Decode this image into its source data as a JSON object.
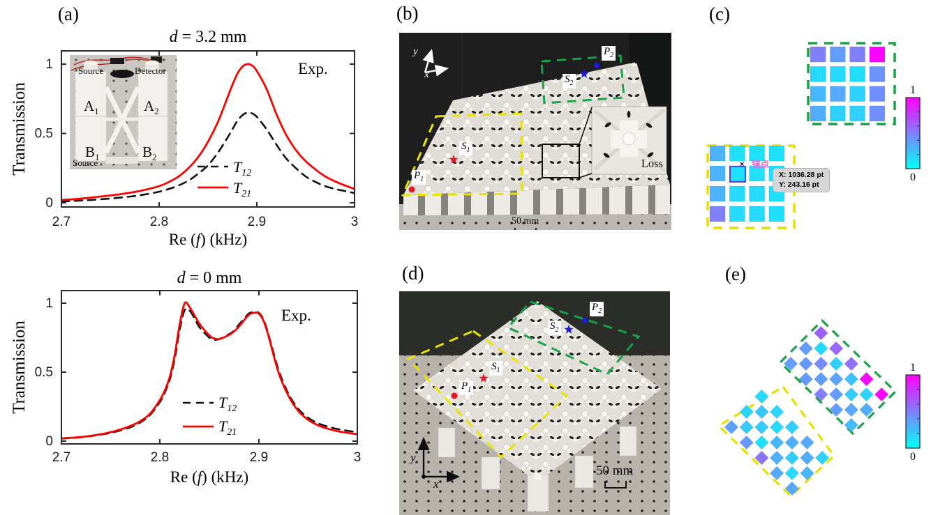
{
  "figure": {
    "panel_labels": {
      "a": "(a)",
      "b": "(b)",
      "c": "(c)",
      "d": "(d)",
      "e": "(e)"
    }
  },
  "plots": {
    "top": {
      "title_var": "d",
      "title_rest": " = 3.2 mm",
      "corner": "Exp.",
      "ylabel": "Transmission",
      "xlabel_pre": "Re (",
      "xlabel_var": "f",
      "xlabel_post": ") (kHz)"
    },
    "bottom": {
      "title_var": "d",
      "title_rest": " = 0 mm",
      "corner": "Exp.",
      "ylabel": "Transmission",
      "xlabel_pre": "Re (",
      "xlabel_var": "f",
      "xlabel_post": ") (kHz)"
    }
  },
  "inset_a": {
    "source_top": "Source",
    "detector": "Detector",
    "source_bottom": "Source",
    "a1_main": "A",
    "a1_sub": "1",
    "a2_main": "A",
    "a2_sub": "2",
    "b1_main": "B",
    "b1_sub": "1",
    "b2_main": "B",
    "b2_sub": "2"
  },
  "photo_b": {
    "axis_x": "x",
    "axis_y": "y",
    "loss": "Loss",
    "scale": "50 mm",
    "p1_main": "P",
    "p1_sub": "1",
    "p2_main": "P",
    "p2_sub": "2",
    "s1_main": "S",
    "s1_sub": "1",
    "s2_main": "S",
    "s2_sub": "2"
  },
  "photo_d": {
    "axis_x": "x",
    "axis_y": "y",
    "scale": "50 mm",
    "p1_main": "P",
    "p1_sub": "1",
    "p2_main": "P",
    "p2_sub": "2",
    "s1_main": "S",
    "s1_sub": "1",
    "s2_main": "S",
    "s2_sub": "2"
  },
  "annotation_overlay": {
    "anchor_label": "锚点",
    "cursor_mark": "×",
    "tooltip_line1": "X: 1036.28 pt",
    "tooltip_line2": "Y: 243.16 pt"
  },
  "chart_data": [
    {
      "id": "transmission-vs-frequency-d3p2mm",
      "type": "line",
      "title": "d = 3.2 mm",
      "xlabel": "Re (f) (kHz)",
      "ylabel": "Transmission",
      "annotation": "Exp.",
      "xlim": [
        2.7,
        3.0
      ],
      "ylim": [
        0,
        1.1
      ],
      "xticks": [
        2.7,
        2.8,
        2.9,
        3.0
      ],
      "xtick_labels": [
        "2.7",
        "2.8",
        "2.9",
        "3"
      ],
      "yticks": [
        0,
        0.5,
        1
      ],
      "ytick_labels": [
        "0",
        "0.5",
        "1"
      ],
      "grid": false,
      "legend_position": "lower right inside",
      "series": [
        {
          "name": "T12",
          "label_main": "T",
          "label_sub": "12",
          "style": "dashed",
          "color": "#111111",
          "x": [
            2.7,
            2.72,
            2.74,
            2.76,
            2.78,
            2.8,
            2.81,
            2.82,
            2.83,
            2.84,
            2.85,
            2.86,
            2.87,
            2.875,
            2.88,
            2.885,
            2.89,
            2.895,
            2.9,
            2.91,
            2.92,
            2.93,
            2.94,
            2.95,
            2.96,
            2.97,
            2.98,
            2.99,
            3.0
          ],
          "y": [
            0.01,
            0.016,
            0.025,
            0.037,
            0.054,
            0.08,
            0.1,
            0.125,
            0.16,
            0.21,
            0.27,
            0.36,
            0.47,
            0.53,
            0.59,
            0.63,
            0.65,
            0.645,
            0.62,
            0.53,
            0.42,
            0.32,
            0.25,
            0.19,
            0.15,
            0.12,
            0.1,
            0.085,
            0.07
          ]
        },
        {
          "name": "T21",
          "label_main": "T",
          "label_sub": "21",
          "style": "solid",
          "color": "#fe0000",
          "x": [
            2.7,
            2.72,
            2.74,
            2.76,
            2.78,
            2.8,
            2.81,
            2.82,
            2.83,
            2.84,
            2.85,
            2.86,
            2.87,
            2.875,
            2.88,
            2.885,
            2.89,
            2.895,
            2.9,
            2.91,
            2.92,
            2.93,
            2.94,
            2.95,
            2.96,
            2.97,
            2.98,
            2.99,
            3.0
          ],
          "y": [
            0.02,
            0.03,
            0.045,
            0.062,
            0.085,
            0.12,
            0.15,
            0.19,
            0.25,
            0.33,
            0.44,
            0.58,
            0.76,
            0.85,
            0.93,
            0.98,
            1.0,
            0.99,
            0.95,
            0.82,
            0.64,
            0.49,
            0.38,
            0.3,
            0.24,
            0.19,
            0.155,
            0.125,
            0.1
          ]
        }
      ]
    },
    {
      "id": "transmission-vs-frequency-d0mm",
      "type": "line",
      "title": "d = 0 mm",
      "xlabel": "Re (f) (kHz)",
      "ylabel": "Transmission",
      "annotation": "Exp.",
      "xlim": [
        2.7,
        3.0
      ],
      "ylim": [
        0,
        1.1
      ],
      "xticks": [
        2.7,
        2.8,
        2.9,
        3.0
      ],
      "xtick_labels": [
        "2.7",
        "2.8",
        "2.9",
        "3"
      ],
      "yticks": [
        0,
        0.5,
        1
      ],
      "ytick_labels": [
        "0",
        "0.5",
        "1"
      ],
      "grid": false,
      "legend_position": "lower center inside",
      "series": [
        {
          "name": "T12",
          "label_main": "T",
          "label_sub": "12",
          "style": "dashed",
          "color": "#111111",
          "x": [
            2.7,
            2.72,
            2.74,
            2.75,
            2.76,
            2.77,
            2.78,
            2.79,
            2.8,
            2.805,
            2.81,
            2.815,
            2.82,
            2.825,
            2.83,
            2.835,
            2.84,
            2.85,
            2.855,
            2.86,
            2.87,
            2.875,
            2.88,
            2.885,
            2.89,
            2.895,
            2.9,
            2.905,
            2.91,
            2.92,
            2.93,
            2.94,
            2.95,
            2.96,
            2.97,
            2.98,
            2.99,
            3.0
          ],
          "y": [
            0.018,
            0.028,
            0.047,
            0.06,
            0.078,
            0.1,
            0.135,
            0.19,
            0.285,
            0.355,
            0.45,
            0.6,
            0.81,
            0.95,
            0.945,
            0.89,
            0.825,
            0.75,
            0.735,
            0.74,
            0.775,
            0.8,
            0.845,
            0.885,
            0.925,
            0.935,
            0.93,
            0.88,
            0.77,
            0.52,
            0.345,
            0.235,
            0.17,
            0.13,
            0.105,
            0.088,
            0.075,
            0.065
          ]
        },
        {
          "name": "T21",
          "label_main": "T",
          "label_sub": "21",
          "style": "solid",
          "color": "#fe0000",
          "x": [
            2.7,
            2.72,
            2.74,
            2.75,
            2.76,
            2.77,
            2.78,
            2.79,
            2.8,
            2.805,
            2.81,
            2.815,
            2.82,
            2.825,
            2.83,
            2.835,
            2.84,
            2.85,
            2.855,
            2.86,
            2.87,
            2.875,
            2.88,
            2.885,
            2.89,
            2.895,
            2.9,
            2.905,
            2.91,
            2.92,
            2.93,
            2.94,
            2.95,
            2.96,
            2.97,
            2.98,
            2.99,
            3.0
          ],
          "y": [
            0.02,
            0.03,
            0.05,
            0.065,
            0.085,
            0.11,
            0.145,
            0.2,
            0.3,
            0.37,
            0.47,
            0.63,
            0.85,
            1.0,
            0.97,
            0.91,
            0.85,
            0.765,
            0.745,
            0.74,
            0.77,
            0.795,
            0.83,
            0.875,
            0.915,
            0.93,
            0.925,
            0.87,
            0.76,
            0.5,
            0.33,
            0.22,
            0.155,
            0.115,
            0.09,
            0.072,
            0.06,
            0.05
          ]
        }
      ]
    },
    {
      "id": "site-intensity-square-lattice",
      "type": "heatmap",
      "panel": "(c)",
      "colormap": "cool",
      "value_range": [
        0,
        1
      ],
      "colorbar": {
        "max_label": "1",
        "min_label": "0"
      },
      "grids": [
        {
          "name": "green-region",
          "outline_color": "#17a24b",
          "values": [
            [
              0.5,
              0.38,
              0.5,
              0.98
            ],
            [
              0.15,
              0.15,
              0.13,
              0.42
            ],
            [
              0.28,
              0.33,
              0.18,
              0.44
            ],
            [
              0.32,
              0.18,
              0.18,
              0.44
            ]
          ]
        },
        {
          "name": "yellow-region",
          "outline_color": "#e8e100",
          "values": [
            [
              0.3,
              0.12,
              0.12,
              0.12
            ],
            [
              0.3,
              0.12,
              0.12,
              0.12
            ],
            [
              0.3,
              0.15,
              0.15,
              0.12
            ],
            [
              0.5,
              0.15,
              0.15,
              0.12
            ]
          ]
        }
      ]
    },
    {
      "id": "site-intensity-diamond-lattice",
      "type": "heatmap",
      "panel": "(e)",
      "colormap": "cool",
      "value_range": [
        0,
        1
      ],
      "colorbar": {
        "max_label": "1",
        "min_label": "0"
      },
      "groups": [
        {
          "name": "green-region",
          "outline_color": "#17a24b",
          "rows": [
            {
              "shift": 2,
              "values": [
                0.62
              ]
            },
            {
              "shift": 1,
              "values": [
                0.38,
                0.14,
                0.6
              ]
            },
            {
              "shift": 0,
              "values": [
                0.38,
                0.4,
                0.46,
                0.18,
                0.56
              ]
            },
            {
              "shift": 1,
              "values": [
                0.4,
                0.38,
                0.36,
                0.24,
                0.97
              ]
            },
            {
              "shift": 2,
              "values": [
                0.5,
                0.38,
                0.2,
                0.17,
                0.97
              ]
            },
            {
              "shift": 3,
              "values": [
                0.38,
                0.35,
                0.32
              ]
            },
            {
              "shift": 4,
              "values": [
                0.27
              ]
            }
          ]
        },
        {
          "name": "yellow-region",
          "outline_color": "#e8e100",
          "rows": [
            {
              "shift": 2,
              "values": [
                0.15
              ]
            },
            {
              "shift": 1,
              "values": [
                0.17,
                0.22,
                0.16
              ]
            },
            {
              "shift": 0,
              "values": [
                0.36,
                0.21,
                0.2,
                0.15,
                0.19
              ]
            },
            {
              "shift": 1,
              "values": [
                0.4,
                0.12,
                0.29,
                0.31,
                0.34
              ]
            },
            {
              "shift": 2,
              "values": [
                0.54,
                0.31,
                0.2,
                0.32,
                0.18
              ]
            },
            {
              "shift": 3,
              "values": [
                0.34,
                0.15,
                0.29
              ]
            },
            {
              "shift": 4,
              "values": [
                0.34
              ]
            }
          ]
        }
      ]
    }
  ]
}
